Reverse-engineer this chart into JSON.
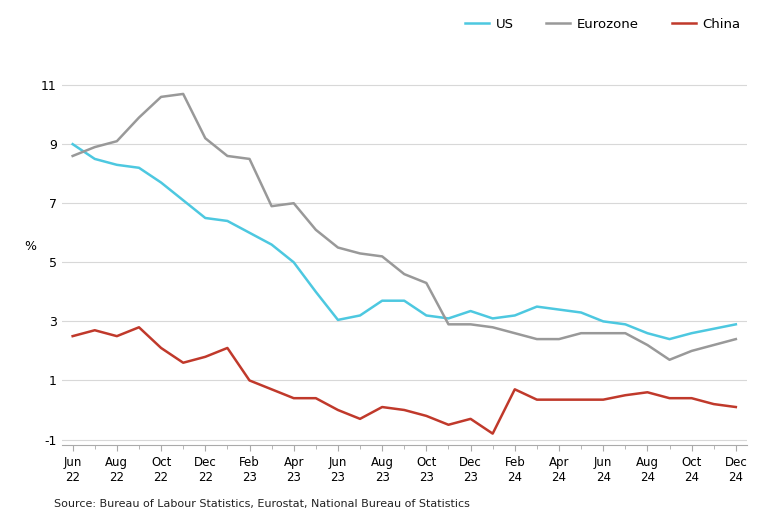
{
  "x_labels": [
    "Jun\n22",
    "Aug\n22",
    "Oct\n22",
    "Dec\n22",
    "Feb\n23",
    "Apr\n23",
    "Jun\n23",
    "Aug\n23",
    "Oct\n23",
    "Dec\n23",
    "Feb\n24",
    "Apr\n24",
    "Jun\n24",
    "Aug\n24",
    "Oct\n24",
    "Dec\n24"
  ],
  "x_tick_positions": [
    0,
    2,
    4,
    6,
    8,
    10,
    12,
    14,
    16,
    18,
    20,
    22,
    24,
    26,
    28,
    30
  ],
  "us_x": [
    0,
    1,
    2,
    3,
    4,
    5,
    6,
    7,
    8,
    9,
    10,
    11,
    12,
    13,
    14,
    15,
    16,
    17,
    18,
    19,
    20,
    21,
    22,
    23,
    24,
    25,
    26,
    27,
    28,
    29,
    30
  ],
  "us_y": [
    9.0,
    8.5,
    8.3,
    8.2,
    7.7,
    7.1,
    6.5,
    6.4,
    6.0,
    5.6,
    5.0,
    4.0,
    3.05,
    3.2,
    3.7,
    3.7,
    3.2,
    3.1,
    3.35,
    3.1,
    3.2,
    3.5,
    3.4,
    3.3,
    3.0,
    2.9,
    2.6,
    2.4,
    2.6,
    2.75,
    2.9
  ],
  "ez_x": [
    0,
    1,
    2,
    3,
    4,
    5,
    6,
    7,
    8,
    9,
    10,
    11,
    12,
    13,
    14,
    15,
    16,
    17,
    18,
    19,
    20,
    21,
    22,
    23,
    24,
    25,
    26,
    27,
    28,
    29,
    30
  ],
  "ez_y": [
    8.6,
    8.9,
    9.1,
    9.9,
    10.6,
    10.7,
    9.2,
    8.6,
    8.5,
    6.9,
    7.0,
    6.1,
    5.5,
    5.3,
    5.2,
    4.6,
    4.3,
    2.9,
    2.9,
    2.8,
    2.6,
    2.4,
    2.4,
    2.6,
    2.6,
    2.6,
    2.2,
    1.7,
    2.0,
    2.2,
    2.4
  ],
  "cn_x": [
    0,
    1,
    2,
    3,
    4,
    5,
    6,
    7,
    8,
    9,
    10,
    11,
    12,
    13,
    14,
    15,
    16,
    17,
    18,
    19,
    20,
    21,
    22,
    23,
    24,
    25,
    26,
    27,
    28,
    29,
    30
  ],
  "cn_y": [
    2.5,
    2.7,
    2.5,
    2.8,
    2.1,
    1.6,
    1.8,
    2.1,
    1.0,
    0.7,
    0.4,
    0.4,
    0.0,
    -0.3,
    0.1,
    0.0,
    -0.2,
    -0.5,
    -0.3,
    -0.8,
    0.7,
    0.35,
    0.35,
    0.35,
    0.35,
    0.5,
    0.6,
    0.4,
    0.4,
    0.2,
    0.1
  ],
  "us_color": "#4dc8e0",
  "eurozone_color": "#999999",
  "china_color": "#c0392b",
  "background_color": "#ffffff",
  "ylabel": "%",
  "ylim": [
    -1.2,
    11.8
  ],
  "yticks": [
    -1,
    1,
    3,
    5,
    7,
    9,
    11
  ],
  "source_text": "Source: Bureau of Labour Statistics, Eurostat, National Bureau of Statistics",
  "legend_labels": [
    "US",
    "Eurozone",
    "China"
  ]
}
